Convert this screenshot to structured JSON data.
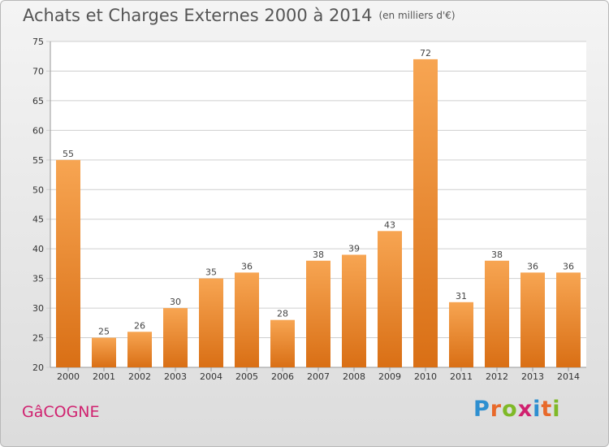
{
  "header": {
    "title": "Achats et Charges Externes 2000 à 2014",
    "subtitle": "(en milliers d'€)"
  },
  "footer": {
    "commune": "GâCOGNE",
    "logo_text": "Proxiti"
  },
  "colors": {
    "bar_light": "#f7a552",
    "bar_dark": "#d96f15",
    "grid": "#cfcfcf",
    "commune": "#d0216f"
  },
  "chart_data": {
    "type": "bar",
    "title": "Achats et Charges Externes 2000 à 2014",
    "subtitle": "(en milliers d'€)",
    "xlabel": "",
    "ylabel": "",
    "categories": [
      "2000",
      "2001",
      "2002",
      "2003",
      "2004",
      "2005",
      "2006",
      "2007",
      "2008",
      "2009",
      "2010",
      "2011",
      "2012",
      "2013",
      "2014"
    ],
    "values": [
      55,
      25,
      26,
      30,
      35,
      36,
      28,
      38,
      39,
      43,
      72,
      31,
      38,
      36,
      36
    ],
    "ylim": [
      20,
      75
    ],
    "yticks": [
      20,
      25,
      30,
      35,
      40,
      45,
      50,
      55,
      60,
      65,
      70,
      75
    ],
    "grid": true
  }
}
